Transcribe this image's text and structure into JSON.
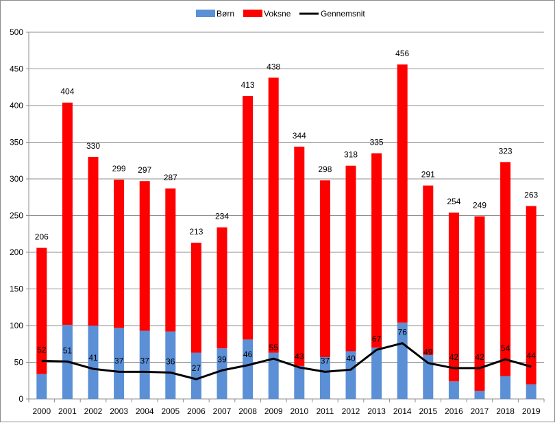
{
  "chart_data": {
    "type": "bar",
    "stacked": true,
    "categories": [
      "2000",
      "2001",
      "2002",
      "2003",
      "2004",
      "2005",
      "2006",
      "2007",
      "2008",
      "2009",
      "2010",
      "2011",
      "2012",
      "2013",
      "2014",
      "2015",
      "2016",
      "2017",
      "2018",
      "2019"
    ],
    "series": [
      {
        "name": "Børn",
        "type": "bar",
        "color": "#5B8FD6",
        "values": [
          34,
          101,
          100,
          97,
          93,
          92,
          63,
          69,
          81,
          63,
          45,
          57,
          65,
          70,
          104,
          60,
          24,
          11,
          31,
          20
        ]
      },
      {
        "name": "Voksne",
        "type": "bar",
        "color": "#FF0000",
        "values": [
          172,
          303,
          230,
          202,
          204,
          195,
          150,
          165,
          332,
          375,
          299,
          241,
          253,
          265,
          352,
          231,
          230,
          238,
          292,
          243
        ]
      },
      {
        "name": "Gennemsnit",
        "type": "line",
        "color": "#000000",
        "values": [
          52,
          51,
          41,
          37,
          37,
          36,
          27,
          39,
          46,
          55,
          43,
          37,
          40,
          67,
          76,
          49,
          42,
          42,
          54,
          44
        ]
      }
    ],
    "totals": [
      206,
      404,
      330,
      299,
      297,
      287,
      213,
      234,
      413,
      438,
      344,
      298,
      318,
      335,
      456,
      291,
      254,
      249,
      323,
      263
    ],
    "ylim": [
      0,
      500
    ],
    "yticks": [
      0,
      50,
      100,
      150,
      200,
      250,
      300,
      350,
      400,
      450,
      500
    ],
    "grid": "horizontal",
    "legend": "top-center",
    "title": "",
    "xlabel": "",
    "ylabel": ""
  }
}
